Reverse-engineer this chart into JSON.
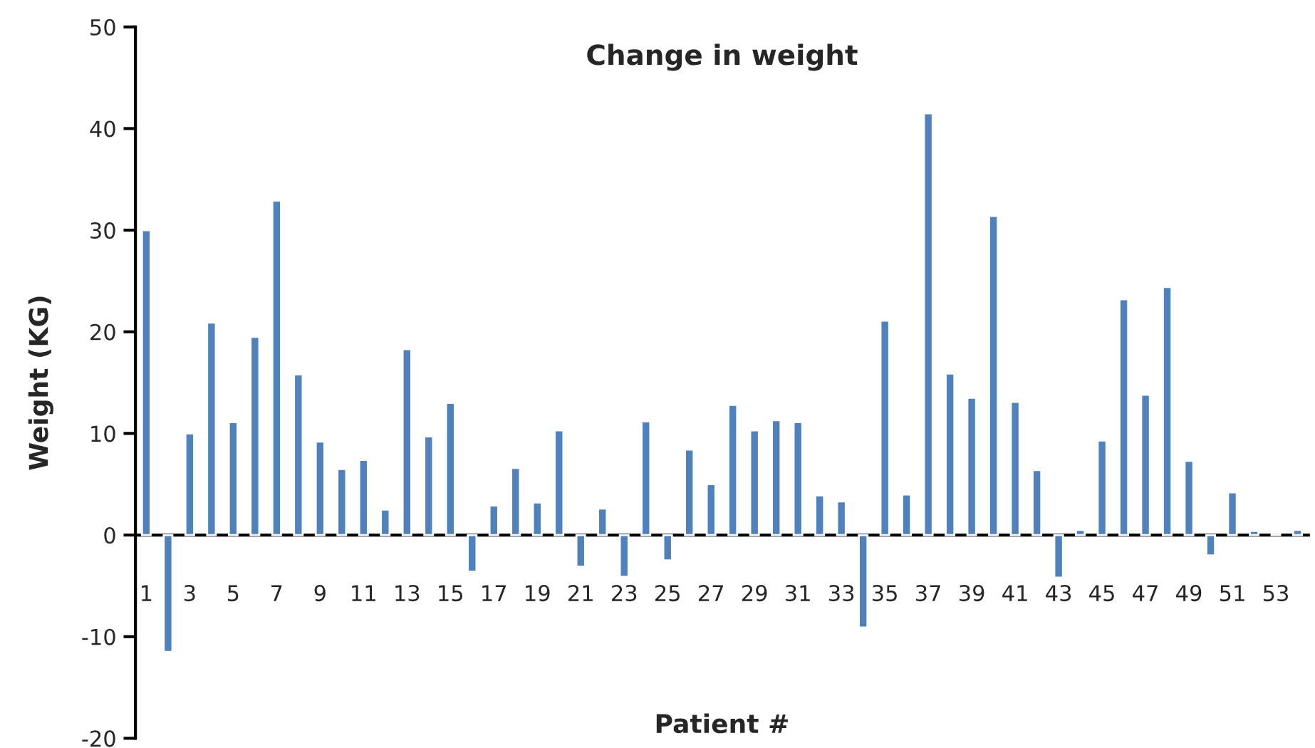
{
  "chart_data": {
    "type": "bar",
    "title": "Change in weight",
    "xlabel": "Patient #",
    "ylabel": "Weight (KG)",
    "categories": [
      "1",
      null,
      "3",
      null,
      "5",
      null,
      "7",
      null,
      "9",
      null,
      "11",
      null,
      "13",
      null,
      "15",
      null,
      "17",
      null,
      "19",
      null,
      "21",
      null,
      "23",
      null,
      "25",
      null,
      "27",
      null,
      "29",
      null,
      "31",
      null,
      "33",
      null,
      "35",
      null,
      "37",
      null,
      "39",
      null,
      "41",
      null,
      "43",
      null,
      "45",
      null,
      "47",
      null,
      "49",
      null,
      "51",
      null,
      "53",
      null
    ],
    "values": [
      30.0,
      -11.5,
      10.0,
      20.9,
      11.1,
      19.5,
      32.9,
      15.8,
      9.2,
      6.5,
      7.4,
      2.5,
      18.3,
      9.7,
      13.0,
      -3.6,
      2.9,
      6.6,
      3.2,
      10.3,
      -3.1,
      2.6,
      -4.1,
      11.2,
      -2.5,
      8.4,
      5.0,
      12.8,
      10.3,
      11.3,
      11.1,
      3.9,
      3.3,
      -9.1,
      21.1,
      4.0,
      41.5,
      15.9,
      13.5,
      31.4,
      13.1,
      6.4,
      -4.2,
      0.5,
      9.3,
      23.2,
      13.8,
      24.4,
      7.3,
      -2.0,
      4.2,
      0.4,
      0.2,
      0.5
    ],
    "color": "#4f81bd",
    "ylim": [
      -20,
      50
    ],
    "yticks": [
      -20,
      -10,
      0,
      10,
      20,
      30,
      40,
      50
    ],
    "grid": false,
    "legend": false
  }
}
